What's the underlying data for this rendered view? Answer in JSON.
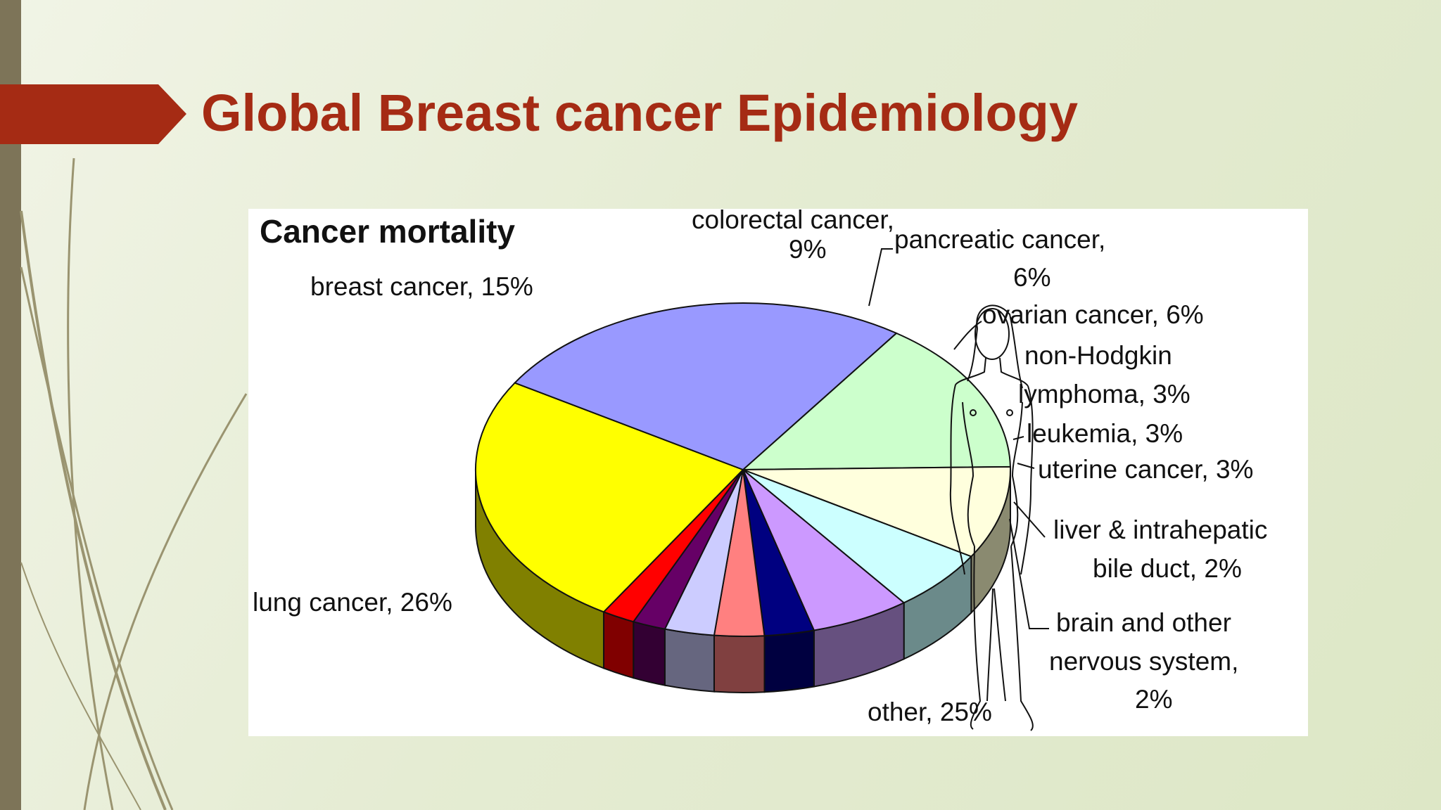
{
  "slide": {
    "title": "Global Breast cancer Epidemiology"
  },
  "chart_data": {
    "type": "pie",
    "style": "3d",
    "title": "Cancer mortality",
    "slices": [
      {
        "key": "breast",
        "label_lines": [
          "breast cancer, 15%"
        ],
        "value": 15,
        "color": "#ccffcc",
        "side": "#6b8a6b"
      },
      {
        "key": "colorectal",
        "label_lines": [
          "colorectal cancer,",
          "9%"
        ],
        "value": 9,
        "color": "#ffffdd",
        "side": "#8a8a70"
      },
      {
        "key": "pancreatic",
        "label_lines": [
          "pancreatic cancer,",
          "6%"
        ],
        "value": 6,
        "color": "#ccffff",
        "side": "#6b8a8a"
      },
      {
        "key": "ovarian",
        "label_lines": [
          "ovarian cancer, 6%"
        ],
        "value": 6,
        "color": "#cc99ff",
        "side": "#66507f"
      },
      {
        "key": "nhl",
        "label_lines": [
          "non-Hodgkin",
          "lymphoma, 3%"
        ],
        "value": 3,
        "color": "#000080",
        "side": "#000040"
      },
      {
        "key": "leukemia",
        "label_lines": [
          "leukemia, 3%"
        ],
        "value": 3,
        "color": "#ff8080",
        "side": "#804040"
      },
      {
        "key": "uterine",
        "label_lines": [
          "uterine cancer, 3%"
        ],
        "value": 3,
        "color": "#ccccff",
        "side": "#66667f"
      },
      {
        "key": "liver",
        "label_lines": [
          "liver & intrahepatic",
          "bile duct, 2%"
        ],
        "value": 2,
        "color": "#660066",
        "side": "#330033"
      },
      {
        "key": "brain",
        "label_lines": [
          "brain and other",
          "nervous system,",
          "2%"
        ],
        "value": 2,
        "color": "#ff0000",
        "side": "#800000"
      },
      {
        "key": "other",
        "label_lines": [
          "other, 25%"
        ],
        "value": 25,
        "color": "#ffff00",
        "side": "#808000"
      },
      {
        "key": "lung",
        "label_lines": [
          "lung cancer, 26%"
        ],
        "value": 26,
        "color": "#9999ff",
        "side": "#4d4d80"
      }
    ]
  }
}
